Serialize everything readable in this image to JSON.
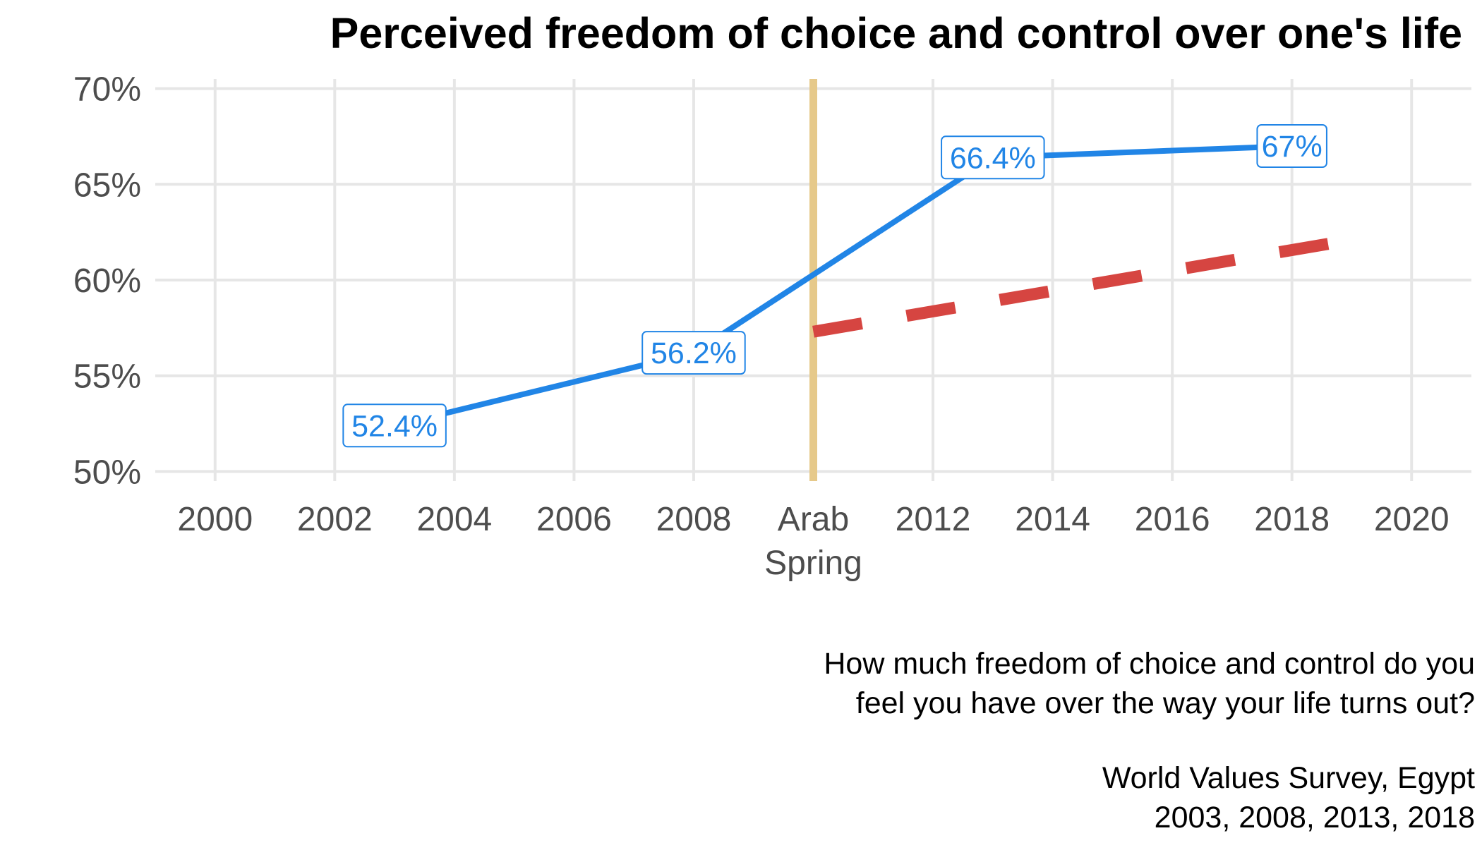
{
  "chart_data": {
    "type": "line",
    "title": "Perceived freedom of choice and control over one's life",
    "xlabel": "",
    "ylabel": "",
    "xlim": [
      1999,
      2021
    ],
    "ylim": [
      49.5,
      70.5
    ],
    "x_ticks": [
      2000,
      2002,
      2004,
      2006,
      2008,
      2010,
      2012,
      2014,
      2016,
      2018,
      2020
    ],
    "x_tick_labels": [
      "2000",
      "2002",
      "2004",
      "2006",
      "2008",
      "Arab\nSpring",
      "2012",
      "2014",
      "2016",
      "2018",
      "2020"
    ],
    "y_ticks": [
      50,
      55,
      60,
      65,
      70
    ],
    "y_tick_labels": [
      "50%",
      "55%",
      "60%",
      "65%",
      "70%"
    ],
    "grid": true,
    "series": [
      {
        "color": "#2185e6",
        "style": "solid",
        "x": [
          2003,
          2008,
          2013,
          2018
        ],
        "y": [
          52.4,
          56.2,
          66.4,
          67.0
        ],
        "labels": [
          "52.4%",
          "56.2%",
          "66.4%",
          "67%"
        ]
      },
      {
        "color": "#d64541",
        "style": "dashed",
        "x": [
          2010,
          2019
        ],
        "y": [
          57.3,
          62.1
        ],
        "labels": []
      }
    ],
    "annotations": [
      {
        "type": "vline",
        "x": 2010,
        "color": "#e6c98a"
      }
    ],
    "caption": {
      "question_lines": [
        "How much freedom of choice and control do you",
        "feel you have over the way your life turns out?"
      ],
      "source_lines": [
        "World Values Survey, Egypt",
        "2003, 2008, 2013, 2018"
      ]
    }
  }
}
